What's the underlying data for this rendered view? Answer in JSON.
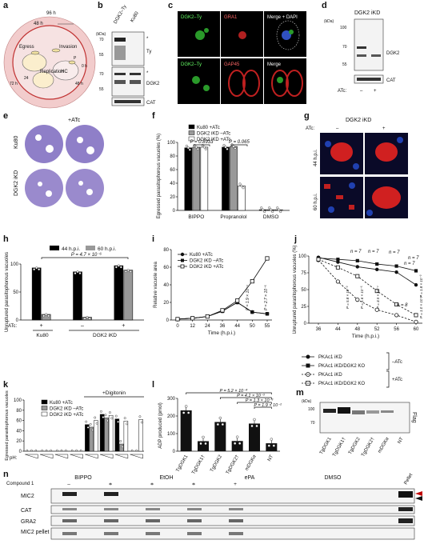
{
  "panel_labels": [
    "a",
    "b",
    "c",
    "d",
    "e",
    "f",
    "g",
    "h",
    "i",
    "j",
    "k",
    "l",
    "m",
    "n"
  ],
  "panel_a": {
    "hours": [
      "96 h",
      "48 h",
      "0 h",
      "48 h",
      "72 h",
      "24"
    ],
    "stages": [
      "Egress",
      "Invasion",
      "Replication",
      "HC",
      "P"
    ]
  },
  "panel_b": {
    "columns": [
      "DGK2–Ty",
      "Ku80"
    ],
    "kda": "(kDa)",
    "ticks_top": [
      "70",
      "55"
    ],
    "ticks_mid": [
      "70",
      "55"
    ],
    "blot_labels": [
      "Ty",
      "DGK2",
      "CAT"
    ],
    "star": "*"
  },
  "panel_c": {
    "row1": [
      "DGK2–Ty",
      "GRA1",
      "Merge + DAPI"
    ],
    "row2": [
      "DGK2–Ty",
      "GAP45",
      "Merge"
    ]
  },
  "panel_d": {
    "title": "DGK2 iKD",
    "kda": "(kDa)",
    "ticks": [
      "100",
      "70",
      "55"
    ],
    "blot_labels": [
      "DGK2",
      "CAT"
    ],
    "atc": "ATc:",
    "lanes": [
      "–",
      "+"
    ]
  },
  "panel_e": {
    "col": "+ATc",
    "rows": [
      "Ku80",
      "DGK2 iKD"
    ]
  },
  "panel_g": {
    "title": "DGK2 iKD",
    "atc": "ATc:",
    "lanes": [
      "–",
      "+"
    ],
    "rows": [
      "44 h.p.i.",
      "60 h.p.i."
    ]
  },
  "panel_j_legend": {
    "items": [
      "PKAc1 iKD",
      "PKAc1 iKD/DGK2 KO",
      "PKAc1 iKD",
      "PKAc1 iKD/DGK2 KO"
    ],
    "groups": [
      "–ATc",
      "+ATc"
    ]
  },
  "panel_m": {
    "kda": "(kDa)",
    "ticks": [
      "100",
      "70"
    ],
    "side": "Flag",
    "lanes": [
      "TgDGK1",
      "TgDGK1†",
      "TgDGK2",
      "TgDGK2†",
      "mDGKα",
      "NT"
    ]
  },
  "panel_n": {
    "treatments": [
      "BIPPO",
      "EtOH",
      "ePA",
      "DMSO"
    ],
    "compound": "Compound 1",
    "signs": [
      "–",
      "+",
      "–",
      "+",
      "–",
      "+",
      "–",
      "+"
    ],
    "pellet": "Pellet",
    "rows": [
      "MIC2",
      "CAT",
      "GRA2",
      "MIC2 pellet"
    ]
  },
  "chart_data": [
    {
      "panel": "f",
      "type": "bar",
      "ylabel": "Egressed parasitophorous vacuoles (%)",
      "ylim": [
        0,
        100
      ],
      "yticks": [
        0,
        20,
        40,
        60,
        80,
        100
      ],
      "categories": [
        "BIPPO",
        "Propranolol",
        "DMSO"
      ],
      "series": [
        {
          "name": "Ku80 +ATc",
          "color": "#000000",
          "values": [
            92,
            93,
            1
          ]
        },
        {
          "name": "DGK2 iKD –ATc",
          "color": "#999999",
          "values": [
            93,
            94,
            1
          ]
        },
        {
          "name": "DGK2 iKD +ATc",
          "color": "#ffffff",
          "values": [
            93,
            36,
            1
          ]
        }
      ],
      "annotations": [
        "P = 0.8933",
        "P = 0.065"
      ]
    },
    {
      "panel": "h",
      "type": "bar",
      "ylabel": "Unruptured parasitophorous vacuoles",
      "ylim": [
        0,
        100
      ],
      "yticks": [
        0,
        50,
        100
      ],
      "categories": [
        "Ku80 +ATc",
        "DGK2 iKD –ATc",
        "DGK2 iKD +ATc"
      ],
      "groups": [
        "Ku80",
        "DGK2 iKD"
      ],
      "atc": [
        "+",
        "–",
        "+"
      ],
      "series": [
        {
          "name": "44 h.p.i.",
          "color": "#000000",
          "values": [
            93,
            86,
            97
          ]
        },
        {
          "name": "60 h.p.i.",
          "color": "#999999",
          "values": [
            10,
            5,
            89
          ]
        }
      ],
      "annotations": [
        "P = 4.7 × 10⁻⁶"
      ]
    },
    {
      "panel": "i",
      "type": "line",
      "xlabel": "Time (h.p.i.)",
      "ylabel": "Relative vacuole area",
      "x": [
        0,
        12,
        24,
        36,
        44,
        50,
        55
      ],
      "ylim": [
        0,
        80
      ],
      "yticks": [
        0,
        20,
        40,
        60,
        80
      ],
      "series": [
        {
          "name": "Ku80 +ATc",
          "marker": "filled-circle",
          "values": [
            1,
            2,
            4,
            10,
            20,
            9,
            7
          ]
        },
        {
          "name": "DGK2 iKD –ATc",
          "marker": "filled-square",
          "values": [
            1,
            2,
            4,
            10,
            20,
            9,
            7
          ]
        },
        {
          "name": "DGK2 iKD +ATc",
          "marker": "open-square",
          "values": [
            1,
            2,
            4,
            11,
            22,
            44,
            70
          ]
        }
      ],
      "annotations": [
        "P = 1.9 × 10⁻⁴",
        "P = 2.7 × 10⁻⁵"
      ]
    },
    {
      "panel": "j",
      "type": "line",
      "xlabel": "Time (h.p.i.)",
      "ylabel": "Unruptured parasitophorous vacuoles (%)",
      "x": [
        36,
        44,
        48,
        52,
        56,
        60
      ],
      "ylim": [
        0,
        100
      ],
      "yticks": [
        0,
        25,
        50,
        75,
        100
      ],
      "series": [
        {
          "name": "PKAc1 iKD –ATc",
          "marker": "filled-circle",
          "line": "solid",
          "values": [
            98,
            91,
            84,
            80,
            76,
            57
          ]
        },
        {
          "name": "PKAc1 iKD/DGK2 KO –ATc",
          "marker": "filled-square",
          "line": "solid",
          "values": [
            97,
            95,
            93,
            88,
            85,
            78
          ]
        },
        {
          "name": "PKAc1 iKD +ATc",
          "marker": "open-circle",
          "line": "dashed",
          "values": [
            94,
            62,
            35,
            20,
            12,
            2
          ]
        },
        {
          "name": "PKAc1 iKD/DGK2 KO +ATc",
          "marker": "open-square",
          "line": "dashed",
          "values": [
            95,
            83,
            70,
            48,
            28,
            12
          ]
        }
      ],
      "annotations": [
        "n = 7",
        "n = 7",
        "n = 7",
        "n = 7",
        "n = 7",
        "n = 8",
        "P = 5.8 × 10⁻³",
        "P = 1.6 × 10⁻⁵",
        "P = 3.5 × 10⁻⁴",
        "P = 1.8 × 10⁻³",
        "P = 1.0 × 10⁻⁴"
      ]
    },
    {
      "panel": "k",
      "type": "bar",
      "ylabel": "Egressed parasitophorous vacuoles",
      "xlabel": "pH:",
      "group_label": "+Digitonin",
      "ylim": [
        0,
        100
      ],
      "yticks": [
        0,
        20,
        40,
        60,
        80,
        100
      ],
      "groups": 8,
      "series": [
        {
          "name": "Ku80 +ATc",
          "color": "#000000",
          "values": [
            0,
            0,
            0,
            0,
            52,
            72,
            63,
            0
          ]
        },
        {
          "name": "DGK2 iKD –ATc",
          "color": "#999999",
          "values": [
            0,
            0,
            0,
            0,
            47,
            65,
            14,
            0
          ]
        },
        {
          "name": "DGK2 iKD +ATc",
          "color": "#ffffff",
          "values": [
            0,
            0,
            0,
            0,
            60,
            70,
            59,
            62
          ]
        }
      ]
    },
    {
      "panel": "l",
      "type": "bar",
      "ylabel": "ADP produced (pmol)",
      "ylim": [
        0,
        300
      ],
      "yticks": [
        0,
        100,
        200,
        300
      ],
      "categories": [
        "TgDGK1",
        "TgDGK1†",
        "TgDGK2",
        "TgDGK2†",
        "mDGKα",
        "NT"
      ],
      "values": [
        232,
        57,
        166,
        58,
        157,
        45
      ],
      "annotations": [
        "P = 5.2 × 10⁻⁴",
        "P = 4.1 × 10⁻³",
        "P = 1.3 × 10⁻³",
        "P = 1.9 × 10⁻²"
      ]
    }
  ]
}
